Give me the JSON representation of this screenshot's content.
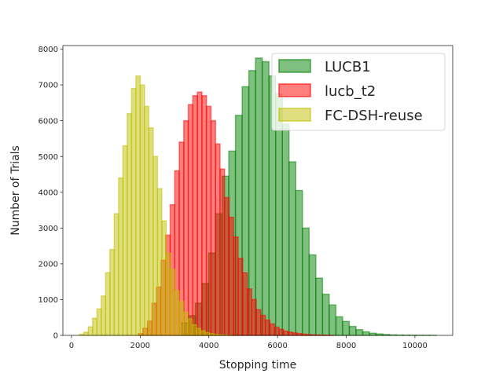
{
  "chart_data": {
    "type": "bar",
    "xlabel": "Stopping time",
    "ylabel": "Number of Trials",
    "xlim": [
      -250,
      11100
    ],
    "ylim": [
      0,
      8100
    ],
    "xticks": [
      0,
      2000,
      4000,
      6000,
      8000,
      10000
    ],
    "yticks": [
      0,
      1000,
      2000,
      3000,
      4000,
      5000,
      6000,
      7000,
      8000
    ],
    "legend_position": "upper right",
    "series": [
      {
        "name": "LUCB1",
        "color": "#008000",
        "bin_width": 195,
        "x": [
          3312,
          3507,
          3702,
          3897,
          4092,
          4287,
          4482,
          4677,
          4872,
          5067,
          5262,
          5457,
          5652,
          5847,
          6042,
          6237,
          6432,
          6627,
          6822,
          7017,
          7212,
          7407,
          7602,
          7797,
          7992,
          8187,
          8382,
          8577,
          8772,
          8967,
          9162,
          9357,
          9552,
          9747,
          9942,
          10137,
          10332,
          10527
        ],
        "values": [
          350,
          550,
          900,
          1450,
          2300,
          3400,
          4450,
          5150,
          6150,
          6950,
          7400,
          7750,
          7650,
          7250,
          6750,
          5900,
          4850,
          4050,
          3000,
          2250,
          1600,
          1150,
          850,
          520,
          390,
          250,
          160,
          100,
          60,
          40,
          25,
          15,
          10,
          8,
          6,
          4,
          3,
          2
        ]
      },
      {
        "name": "lucb_t2",
        "color": "#ff0000",
        "bin_width": 132,
        "x": [
          2016,
          2148,
          2280,
          2412,
          2544,
          2676,
          2808,
          2940,
          3072,
          3204,
          3336,
          3468,
          3600,
          3732,
          3864,
          3996,
          4128,
          4260,
          4392,
          4524,
          4656,
          4788,
          4920,
          5052,
          5184,
          5316,
          5448,
          5580,
          5712,
          5844,
          5976,
          6108,
          6240,
          6372,
          6504,
          6636,
          6768,
          6900,
          7032,
          7164,
          7296,
          7428,
          7560
        ],
        "values": [
          50,
          200,
          400,
          900,
          1350,
          2100,
          2800,
          3650,
          4600,
          5400,
          6000,
          6450,
          6700,
          6800,
          6700,
          6400,
          6000,
          5350,
          4650,
          3850,
          3300,
          2750,
          2150,
          1750,
          1300,
          1000,
          720,
          560,
          430,
          320,
          230,
          170,
          120,
          90,
          70,
          50,
          35,
          25,
          18,
          12,
          8,
          5,
          3
        ]
      },
      {
        "name": "FC-DSH-reuse",
        "color": "#bfbf00",
        "bin_width": 126,
        "x": [
          300,
          426,
          552,
          678,
          804,
          930,
          1056,
          1182,
          1308,
          1434,
          1560,
          1686,
          1812,
          1938,
          2064,
          2190,
          2316,
          2442,
          2568,
          2694,
          2820,
          2946,
          3072,
          3198,
          3324,
          3450,
          3576,
          3702,
          3828,
          3954,
          4080,
          4206,
          4332,
          4458,
          4584
        ],
        "values": [
          30,
          90,
          240,
          480,
          740,
          1100,
          1750,
          2400,
          3400,
          4400,
          5300,
          6200,
          6900,
          7250,
          7000,
          6400,
          5800,
          5000,
          4100,
          3200,
          2300,
          1850,
          1250,
          950,
          650,
          460,
          300,
          200,
          130,
          80,
          50,
          30,
          18,
          10,
          5
        ]
      }
    ]
  }
}
